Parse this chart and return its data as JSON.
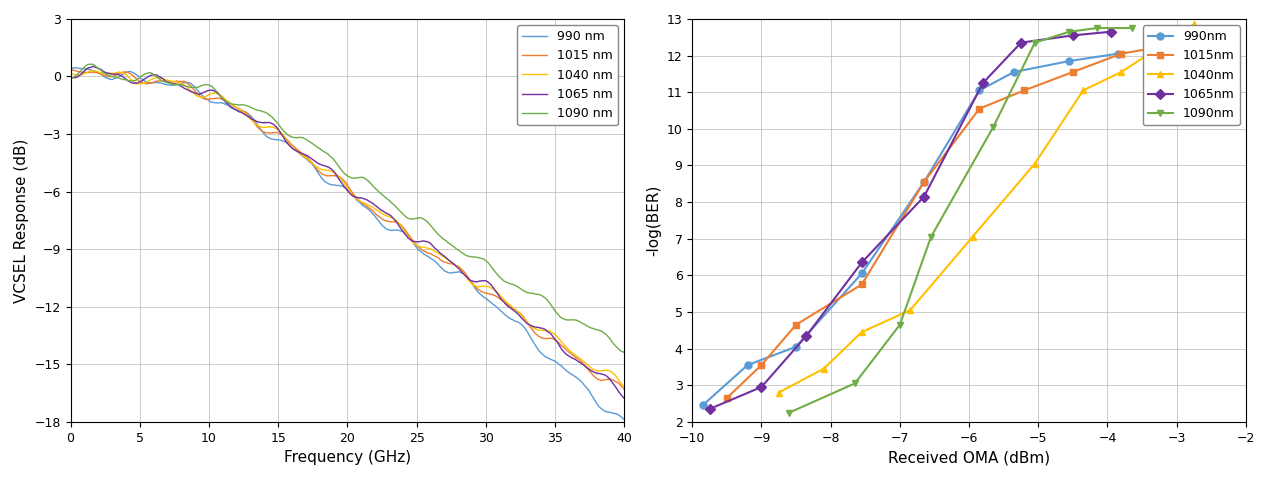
{
  "left_plot": {
    "ylabel": "VCSEL Response (dB)",
    "xlabel": "Frequency (GHz)",
    "xlim": [
      0,
      40
    ],
    "ylim": [
      -18,
      3
    ],
    "yticks": [
      3,
      0,
      -3,
      -6,
      -9,
      -12,
      -15,
      -18
    ],
    "xticks": [
      0,
      5,
      10,
      15,
      20,
      25,
      30,
      35,
      40
    ],
    "legend_labels": [
      "990 nm",
      "1015 nm",
      "1040 nm",
      "1065 nm",
      "1090 nm"
    ],
    "colors": [
      "#5B9BD5",
      "#ED7D31",
      "#FFC000",
      "#7030A0",
      "#70AD47"
    ]
  },
  "right_plot": {
    "ylabel": "-log(BER)",
    "xlabel": "Received OMA (dBm)",
    "xlim": [
      -10,
      -2
    ],
    "ylim_top": 2,
    "ylim_bottom": 13,
    "yticks": [
      2,
      3,
      4,
      5,
      6,
      7,
      8,
      9,
      10,
      11,
      12,
      13
    ],
    "xticks": [
      -10,
      -9,
      -8,
      -7,
      -6,
      -5,
      -4,
      -3,
      -2
    ],
    "legend_labels": [
      "990nm",
      "1015nm",
      "1040nm",
      "1065nm",
      "1090nm"
    ],
    "colors": [
      "#5B9BD5",
      "#ED7D31",
      "#FFC000",
      "#7030A0",
      "#70AD47"
    ],
    "markers": [
      "o",
      "s",
      "^",
      "D",
      "v"
    ],
    "series": {
      "990nm": {
        "x": [
          -9.85,
          -9.2,
          -8.5,
          -7.55,
          -6.65,
          -5.85,
          -5.35,
          -4.55,
          -3.85
        ],
        "y": [
          2.45,
          3.55,
          4.05,
          6.05,
          8.55,
          11.05,
          11.55,
          11.85,
          12.05
        ]
      },
      "1015nm": {
        "x": [
          -9.5,
          -9.0,
          -8.5,
          -7.55,
          -6.65,
          -5.85,
          -5.2,
          -4.5,
          -3.8,
          -3.2
        ],
        "y": [
          2.65,
          3.55,
          4.65,
          5.75,
          8.55,
          10.55,
          11.05,
          11.55,
          12.05,
          12.25
        ]
      },
      "1040nm": {
        "x": [
          -8.75,
          -8.1,
          -7.55,
          -6.85,
          -5.95,
          -5.05,
          -4.35,
          -3.8,
          -2.75
        ],
        "y": [
          2.8,
          3.45,
          4.45,
          5.05,
          7.05,
          9.05,
          11.05,
          11.55,
          12.85
        ]
      },
      "1065nm": {
        "x": [
          -9.75,
          -9.0,
          -8.35,
          -7.55,
          -6.65,
          -5.8,
          -5.25,
          -4.5,
          -3.95
        ],
        "y": [
          2.35,
          2.95,
          4.35,
          6.35,
          8.15,
          11.25,
          12.35,
          12.55,
          12.65
        ]
      },
      "1090nm": {
        "x": [
          -8.6,
          -7.65,
          -7.0,
          -6.55,
          -5.65,
          -5.05,
          -4.55,
          -4.15,
          -3.65
        ],
        "y": [
          2.25,
          3.05,
          4.65,
          7.05,
          10.05,
          12.35,
          12.65,
          12.75,
          12.75
        ]
      }
    }
  }
}
